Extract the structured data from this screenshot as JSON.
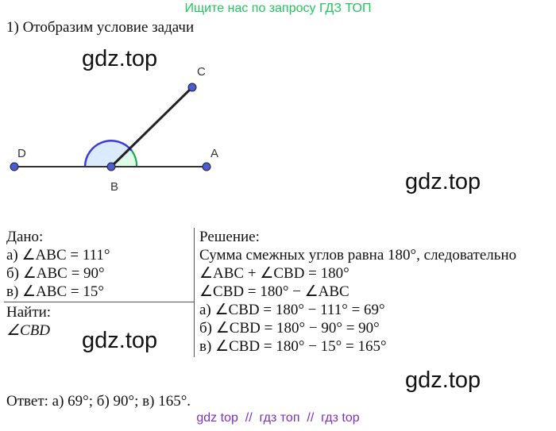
{
  "header": {
    "banner": "Ищите нас по запросу ГДЗ ТОП",
    "heading": "1) Отобразим условие задачи"
  },
  "diagram": {
    "labels": {
      "c": "C",
      "d": "D",
      "a": "A",
      "b": "B"
    }
  },
  "watermarks": [
    "gdz.top",
    "gdz.top",
    "gdz.top",
    "gdz.top"
  ],
  "given": {
    "title": "Дано:",
    "items": [
      "а) ∠ABC = 111°",
      "б) ∠ABC = 90°",
      "в) ∠ABC = 15°"
    ]
  },
  "find": {
    "title": "Найти:",
    "items": [
      "∠CBD"
    ]
  },
  "solution": {
    "title": "Решение:",
    "lines": [
      "Сумма смежных углов равна 180°, следовательно",
      "∠ABC + ∠CBD = 180°",
      "∠CBD = 180° − ∠ABC",
      "а) ∠CBD = 180° − 111° = 69°",
      "б) ∠CBD = 180° − 90° = 90°",
      "в) ∠CBD = 180° − 15° = 165°"
    ]
  },
  "answer": "Ответ: а) 69°; б) 90°; в) 165°.",
  "footer": "gdz top  //  гдз топ  //  гдз top"
}
